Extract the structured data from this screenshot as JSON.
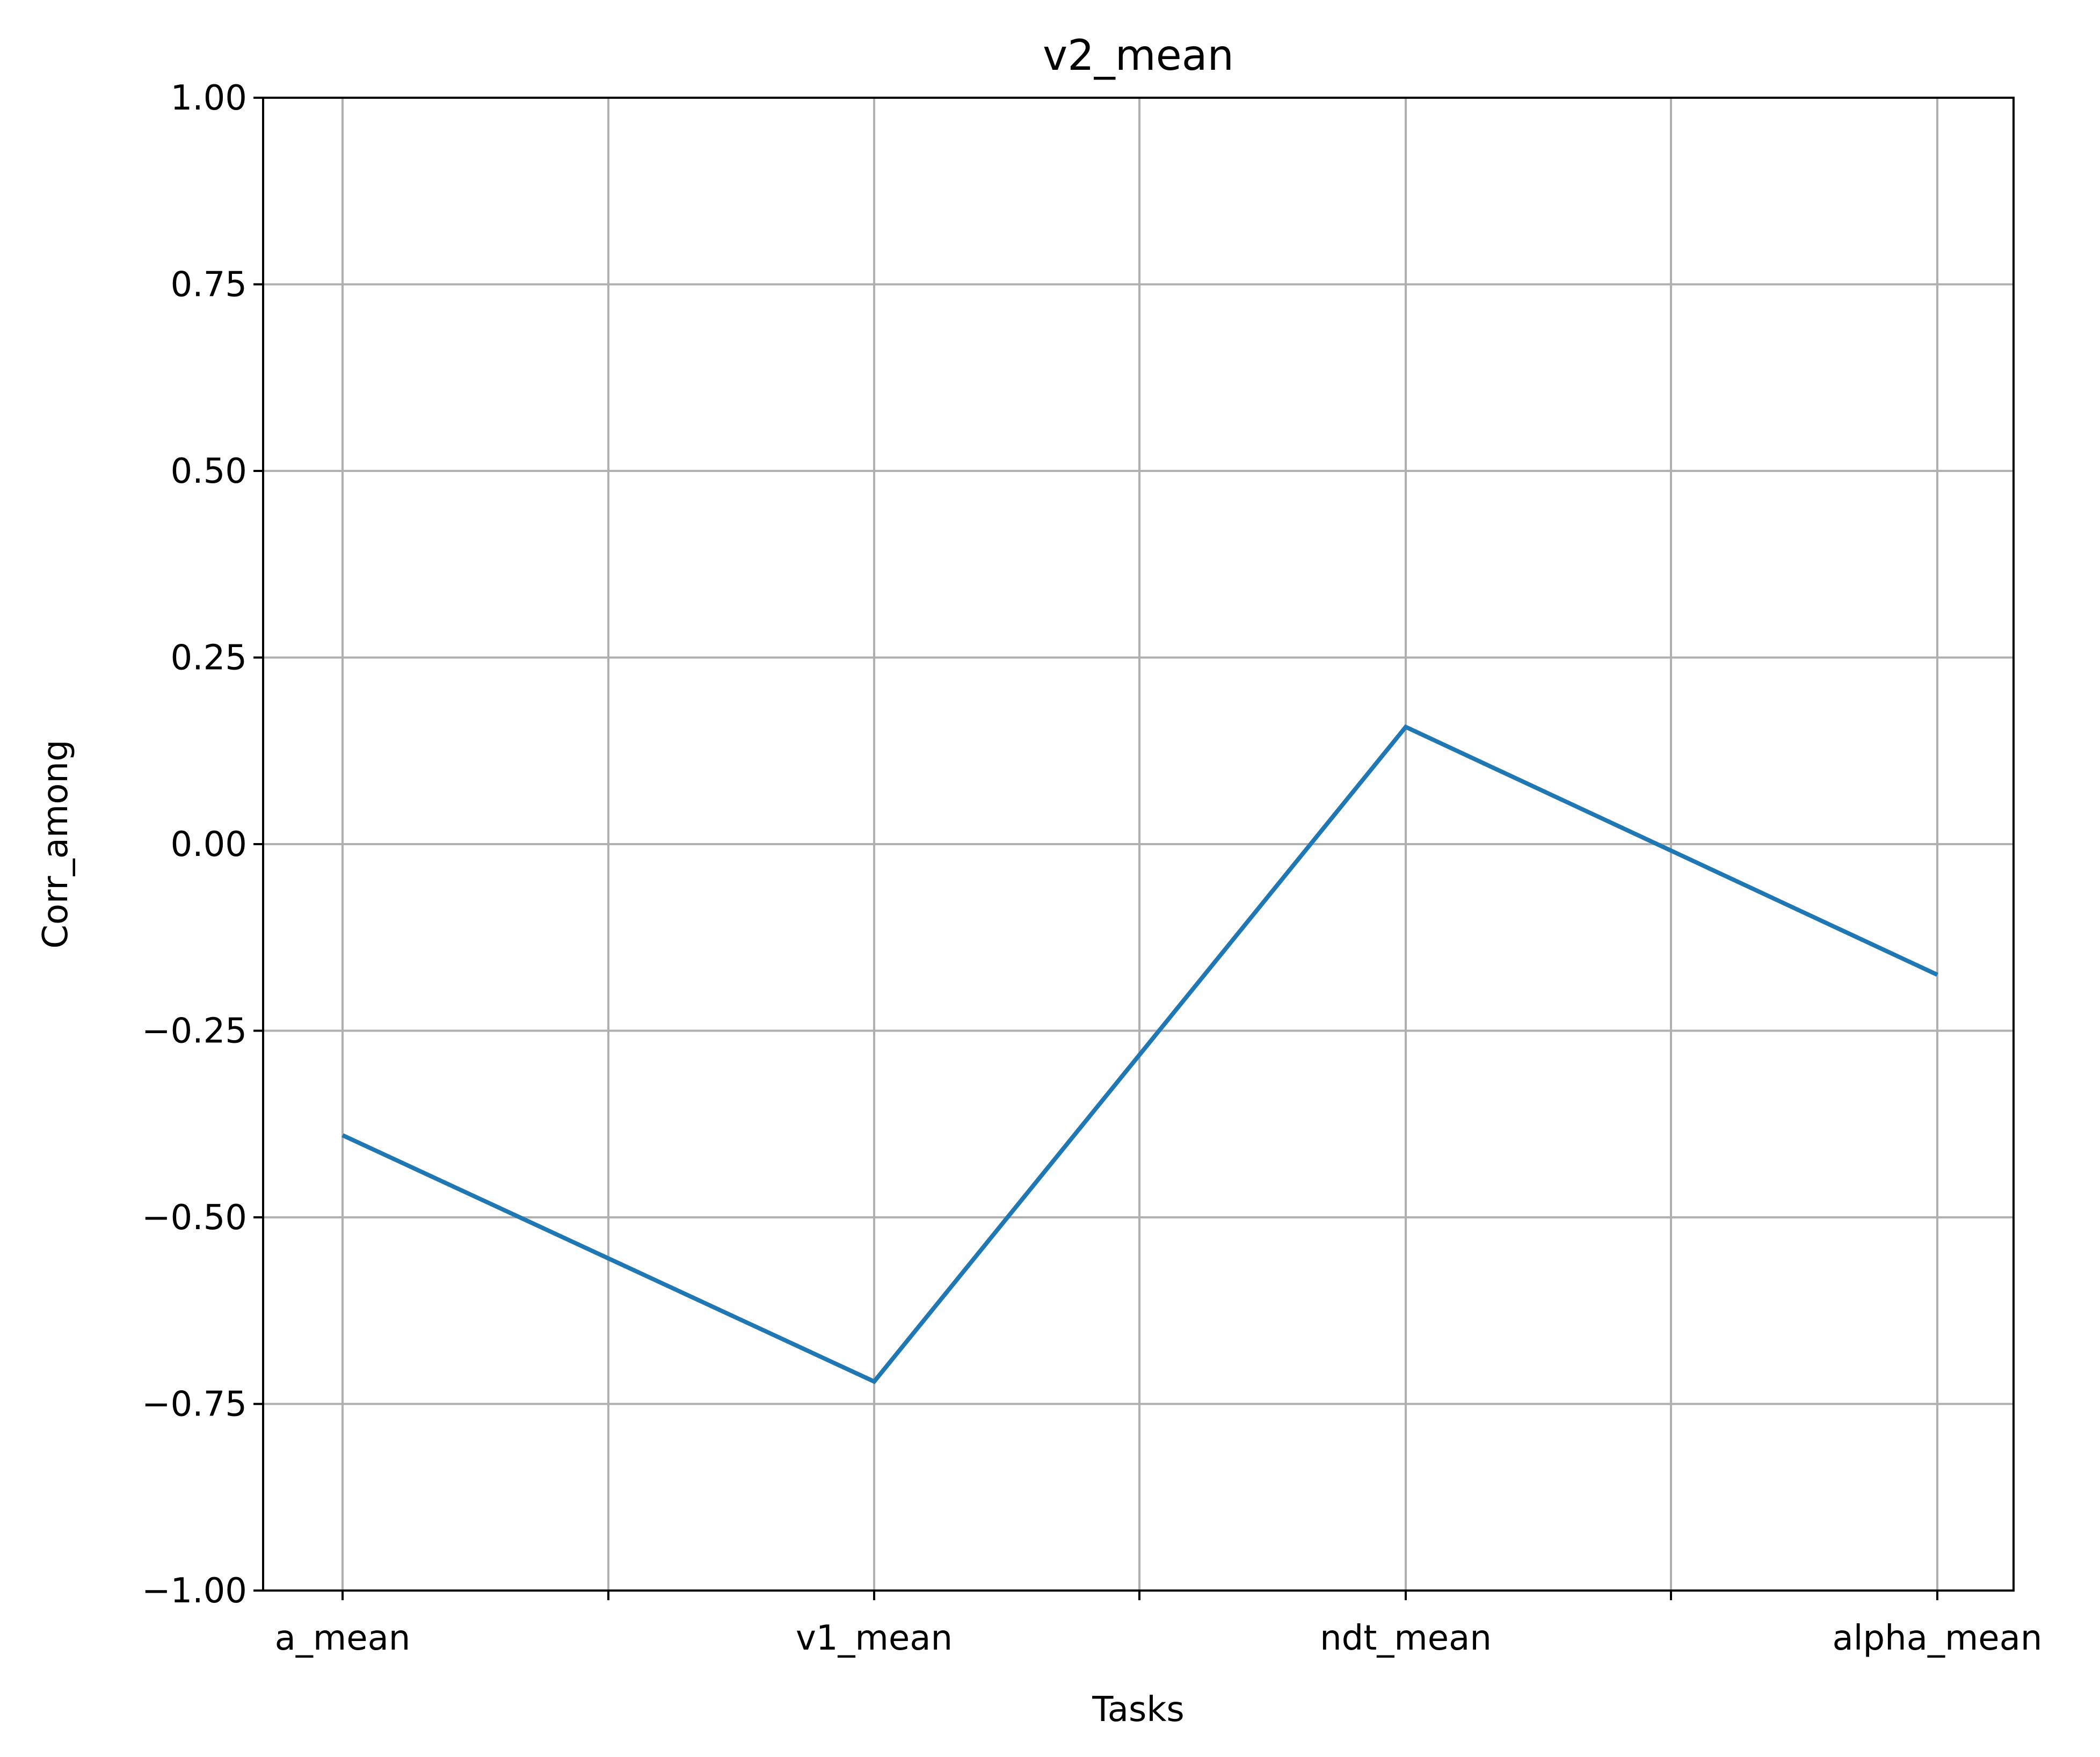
{
  "chart_data": {
    "type": "line",
    "title": "v2_mean",
    "xlabel": "Tasks",
    "ylabel": "Corr_among",
    "categories": [
      "a_mean",
      "v1_mean",
      "ndt_mean",
      "alpha_mean"
    ],
    "series": [
      {
        "values": [
          -0.39,
          -0.72,
          0.157,
          -0.175
        ],
        "color": "#1f77b4"
      }
    ],
    "ylim": [
      -1.0,
      1.0
    ],
    "yticks": [
      "−1.00",
      "−0.75",
      "−0.50",
      "−0.25",
      "0.00",
      "0.25",
      "0.50",
      "0.75",
      "1.00"
    ],
    "ytick_values": [
      -1.0,
      -0.75,
      -0.5,
      -0.25,
      0.0,
      0.25,
      0.5,
      0.75,
      1.0
    ],
    "grid": true,
    "legend": "none"
  }
}
